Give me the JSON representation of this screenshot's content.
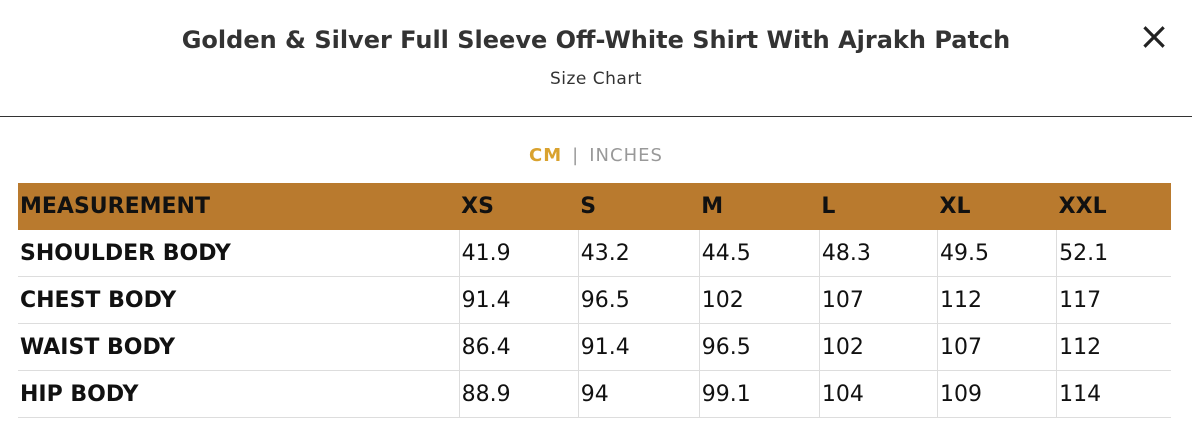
{
  "header": {
    "title": "Golden & Silver Full Sleeve Off-White Shirt With Ajrakh Patch",
    "subtitle": "Size Chart",
    "close": "×"
  },
  "units": {
    "options": [
      "CM",
      "INCHES"
    ],
    "separator": "|"
  },
  "table": {
    "header": [
      "MEASUREMENT",
      "XS",
      "S",
      "M",
      "L",
      "XL",
      "XXL"
    ],
    "rows": [
      [
        "SHOULDER BODY",
        "41.9",
        "43.2",
        "44.5",
        "48.3",
        "49.5",
        "52.1"
      ],
      [
        "CHEST BODY",
        "91.4",
        "96.5",
        "102",
        "107",
        "112",
        "117"
      ],
      [
        "WAIST BODY",
        "86.4",
        "91.4",
        "96.5",
        "102",
        "107",
        "112"
      ],
      [
        "HIP BODY",
        "88.9",
        "94",
        "99.1",
        "104",
        "109",
        "114"
      ]
    ]
  }
}
